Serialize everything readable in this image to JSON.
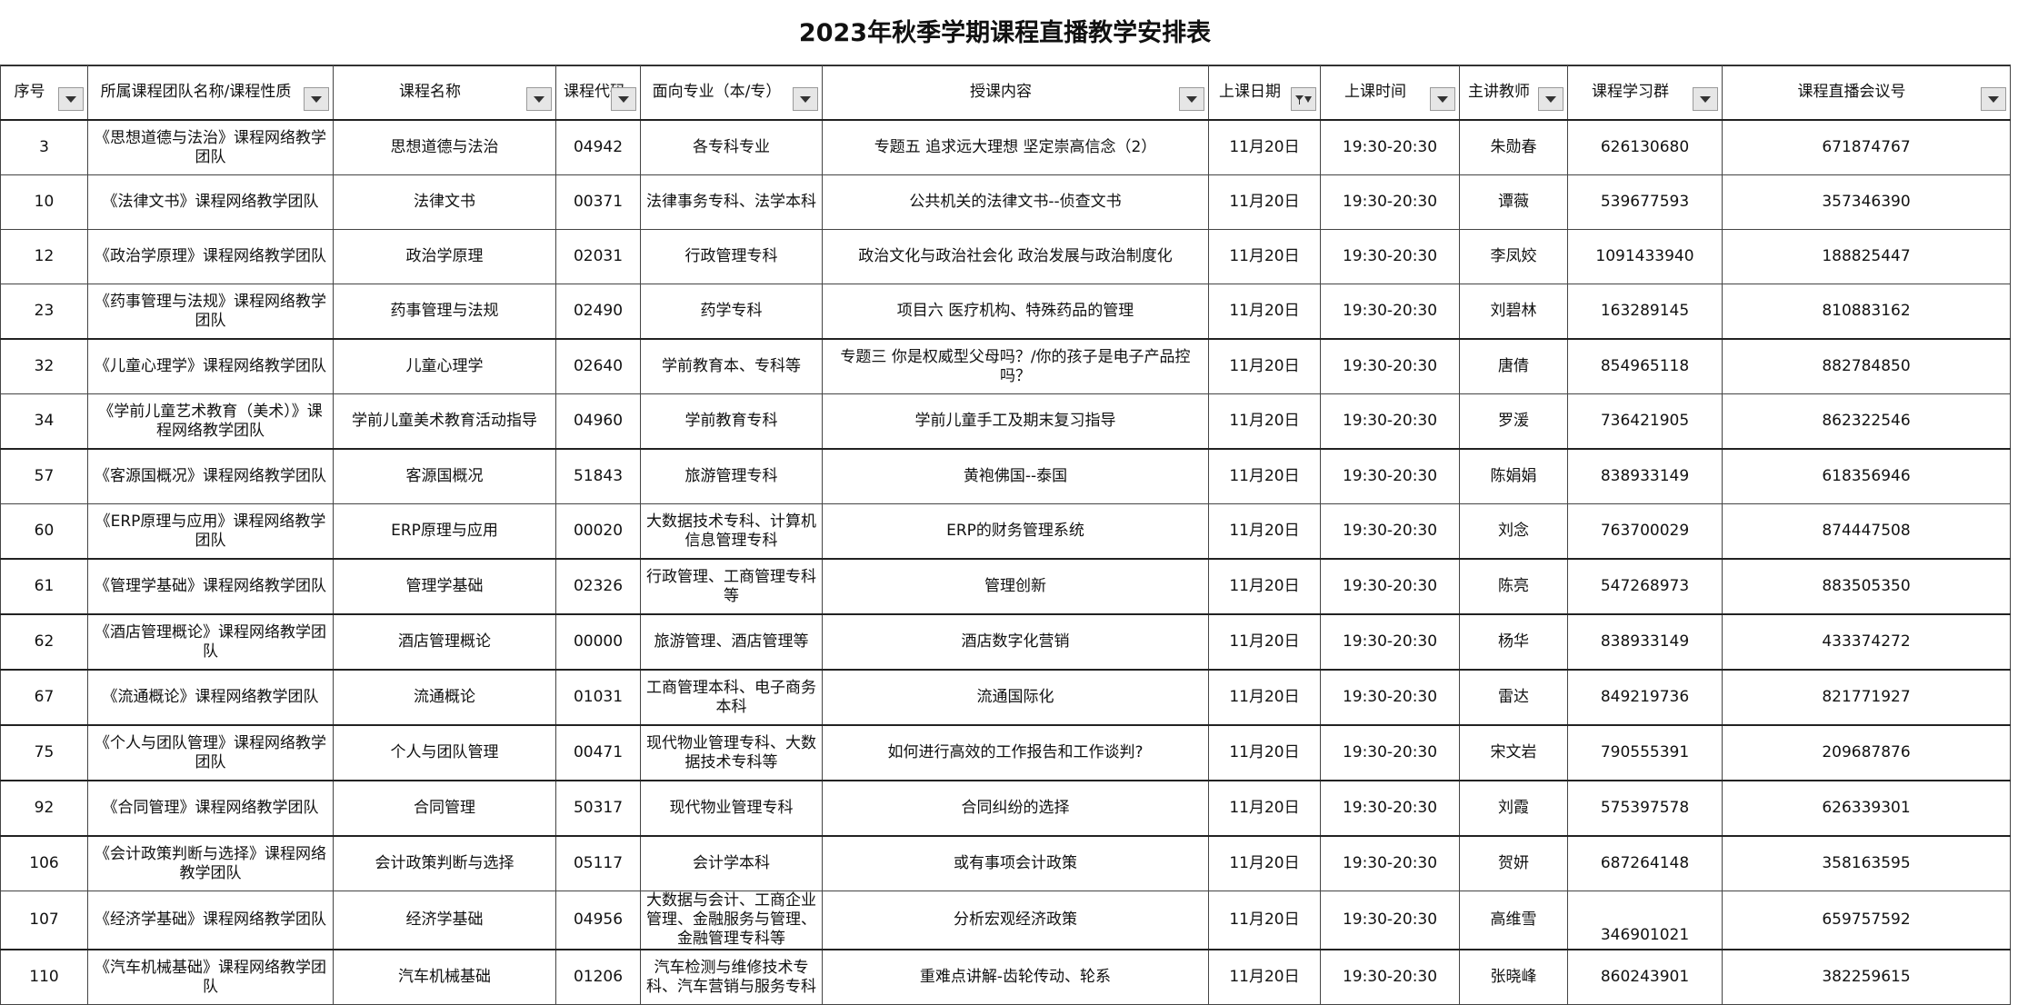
{
  "title": "2023年秋季学期课程直播教学安排表",
  "table": {
    "headers": [
      "序号",
      "所属课程团队名称/课程性质",
      "课程名称",
      "课程代码",
      "面向专业（本/专）",
      "授课内容",
      "上课日期",
      "上课时间",
      "主讲教师",
      "课程学习群",
      "课程直播会议号"
    ],
    "rows": [
      [
        "3",
        "《思想道德与法治》课程网络教学团队",
        "思想道德与法治",
        "04942",
        "各专科专业",
        "专题五 追求远大理想 坚定崇高信念（2）",
        "11月20日",
        "19:30-20:30",
        "朱勋春",
        "626130680",
        "671874767"
      ],
      [
        "10",
        "《法律文书》课程网络教学团队",
        "法律文书",
        "00371",
        "法律事务专科、法学本科",
        "公共机关的法律文书--侦查文书",
        "11月20日",
        "19:30-20:30",
        "谭薇",
        "539677593",
        "357346390"
      ],
      [
        "12",
        "《政治学原理》课程网络教学团队",
        "政治学原理",
        "02031",
        "行政管理专科",
        "政治文化与政治社会化 政治发展与政治制度化",
        "11月20日",
        "19:30-20:30",
        "李凤姣",
        "1091433940",
        "188825447"
      ],
      [
        "23",
        "《药事管理与法规》课程网络教学团队",
        "药事管理与法规",
        "02490",
        "药学专科",
        "项目六 医疗机构、特殊药品的管理",
        "11月20日",
        "19:30-20:30",
        "刘碧林",
        "163289145",
        "810883162"
      ],
      [
        "32",
        "《儿童心理学》课程网络教学团队",
        "儿童心理学",
        "02640",
        "学前教育本、专科等",
        "专题三 你是权威型父母吗？/你的孩子是电子产品控吗？",
        "11月20日",
        "19:30-20:30",
        "唐倩",
        "854965118",
        "882784850"
      ],
      [
        "34",
        "《学前儿童艺术教育（美术）》课程网络教学团队",
        "学前儿童美术教育活动指导",
        "04960",
        "学前教育专科",
        "学前儿童手工及期末复习指导",
        "11月20日",
        "19:30-20:30",
        "罗湲",
        "736421905",
        "862322546"
      ],
      [
        "57",
        "《客源国概况》课程网络教学团队",
        "客源国概况",
        "51843",
        "旅游管理专科",
        "黄袍佛国--泰国",
        "11月20日",
        "19:30-20:30",
        "陈娟娟",
        "838933149",
        "618356946"
      ],
      [
        "60",
        "《ERP原理与应用》课程网络教学团队",
        "ERP原理与应用",
        "00020",
        "大数据技术专科、计算机信息管理专科",
        "ERP的财务管理系统",
        "11月20日",
        "19:30-20:30",
        "刘念",
        "763700029",
        "874447508"
      ],
      [
        "61",
        "《管理学基础》课程网络教学团队",
        "管理学基础",
        "02326",
        "行政管理、工商管理专科等",
        "管理创新",
        "11月20日",
        "19:30-20:30",
        "陈亮",
        "547268973",
        "883505350"
      ],
      [
        "62",
        "《酒店管理概论》课程网络教学团队",
        "酒店管理概论",
        "00000",
        "旅游管理、酒店管理等",
        "酒店数字化营销",
        "11月20日",
        "19:30-20:30",
        "杨华",
        "838933149",
        "433374272"
      ],
      [
        "67",
        "《流通概论》课程网络教学团队",
        "流通概论",
        "01031",
        "工商管理本科、电子商务本科",
        "流通国际化",
        "11月20日",
        "19:30-20:30",
        "雷达",
        "849219736",
        "821771927"
      ],
      [
        "75",
        "《个人与团队管理》课程网络教学团队",
        "个人与团队管理",
        "00471",
        "现代物业管理专科、大数据技术专科等",
        "如何进行高效的工作报告和工作谈判?",
        "11月20日",
        "19:30-20:30",
        "宋文岩",
        "790555391",
        "209687876"
      ],
      [
        "92",
        "《合同管理》课程网络教学团队",
        "合同管理",
        "50317",
        "现代物业管理专科",
        "合同纠纷的选择",
        "11月20日",
        "19:30-20:30",
        "刘霞",
        "575397578",
        "626339301"
      ],
      [
        "106",
        "《会计政策判断与选择》课程网络教学团队",
        "会计政策判断与选择",
        "05117",
        "会计学本科",
        "或有事项会计政策",
        "11月20日",
        "19:30-20:30",
        "贺妍",
        "687264148",
        "358163595"
      ],
      [
        "107",
        "《经济学基础》课程网络教学团队",
        "经济学基础",
        "04956",
        "大数据与会计、工商企业管理、金融服务与管理、金融管理专科等",
        "分析宏观经济政策",
        "11月20日",
        "19:30-20:30",
        "高维雪",
        "346901021",
        "659757592"
      ],
      [
        "110",
        "《汽车机械基础》课程网络教学团队",
        "汽车机械基础",
        "01206",
        "汽车检测与维修技术专科、汽车营销与服务专科",
        "重难点讲解-齿轮传动、轮系",
        "11月20日",
        "19:30-20:30",
        "张晓峰",
        "860243901",
        "382259615"
      ]
    ]
  }
}
